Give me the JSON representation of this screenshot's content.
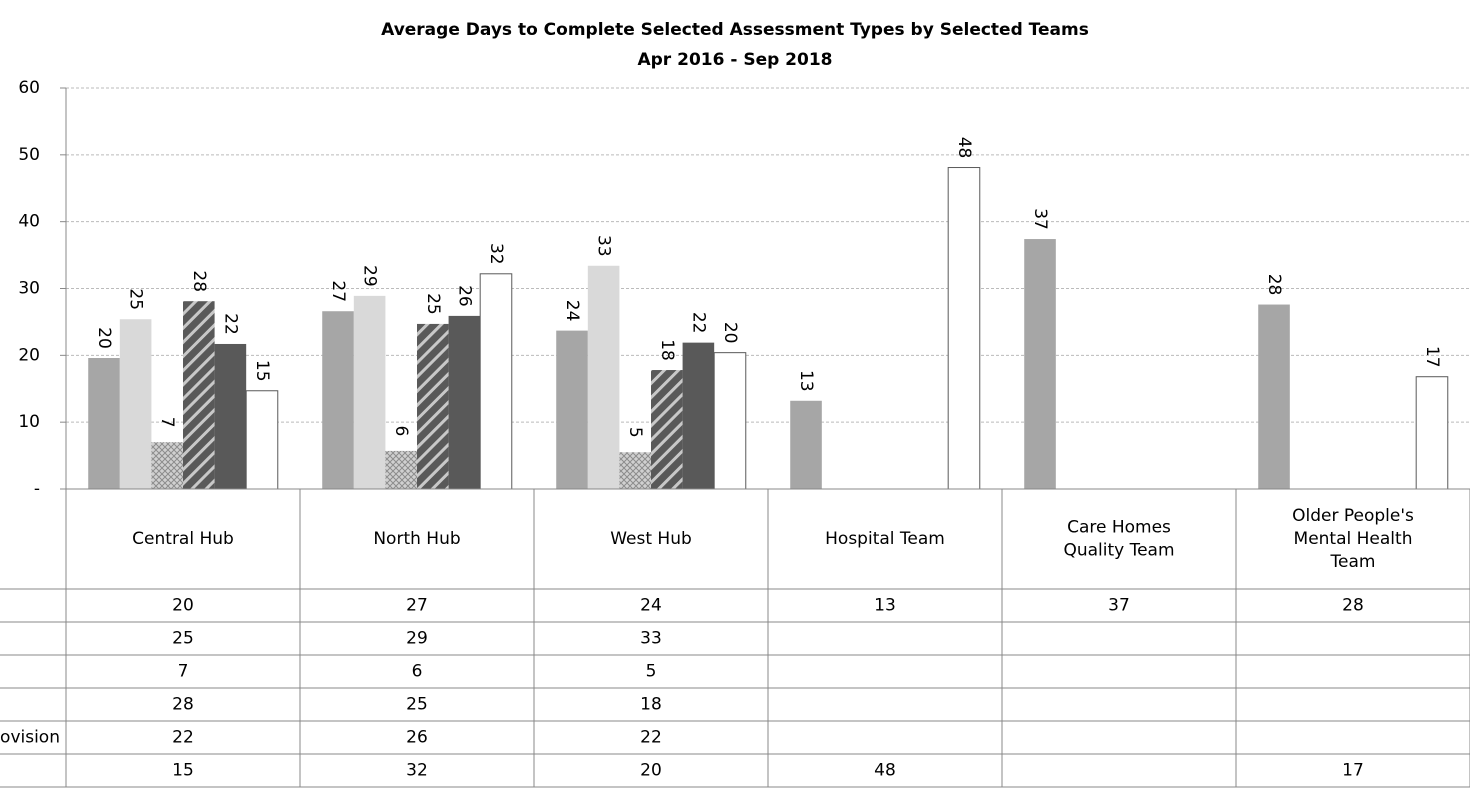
{
  "chart_data": {
    "type": "bar",
    "title": "Average Days to Complete Selected Assessment Types  by Selected Teams",
    "subtitle": "Apr 2016 - Sep 2018",
    "categories": [
      "Central Hub",
      "North Hub",
      "West Hub",
      "Hospital Team",
      "Care Homes Quality Team",
      "Older People's Mental Health Team"
    ],
    "series": [
      {
        "color": "#a6a6a6",
        "values": [
          19.6,
          26.6,
          23.7,
          13.2,
          37.4,
          27.6
        ],
        "value_labels": [
          "20",
          "27",
          "24",
          "13",
          "37",
          "28"
        ]
      },
      {
        "color": "#d9d9d9",
        "values": [
          25.4,
          28.9,
          33.4,
          null,
          null,
          null
        ],
        "value_labels": [
          "25",
          "29",
          "33",
          null,
          null,
          null
        ]
      },
      {
        "color": "#bfbfbf",
        "pattern": "crosshatch",
        "values": [
          7.0,
          5.7,
          5.5,
          null,
          null,
          null
        ],
        "value_labels": [
          "7",
          "6",
          "5",
          null,
          null,
          null
        ]
      },
      {
        "color": "#595959",
        "pattern": "diagonal",
        "values": [
          28.1,
          24.7,
          17.8,
          null,
          null,
          null
        ],
        "value_labels": [
          "28",
          "25",
          "18",
          null,
          null,
          null
        ]
      },
      {
        "name": "ovision",
        "color": "#595959",
        "values": [
          21.7,
          25.9,
          21.9,
          null,
          null,
          null
        ],
        "value_labels": [
          "22",
          "26",
          "22",
          null,
          null,
          null
        ]
      },
      {
        "color": "#ffffff",
        "values": [
          14.7,
          32.2,
          20.4,
          48.1,
          null,
          16.8
        ],
        "value_labels": [
          "15",
          "32",
          "20",
          "48",
          null,
          "17"
        ]
      }
    ],
    "ylim": [
      0,
      60
    ],
    "yticks": [
      {
        "value": 0,
        "label": "-"
      },
      10,
      20,
      30,
      40,
      50,
      60
    ],
    "grid": true,
    "data_table": true
  }
}
